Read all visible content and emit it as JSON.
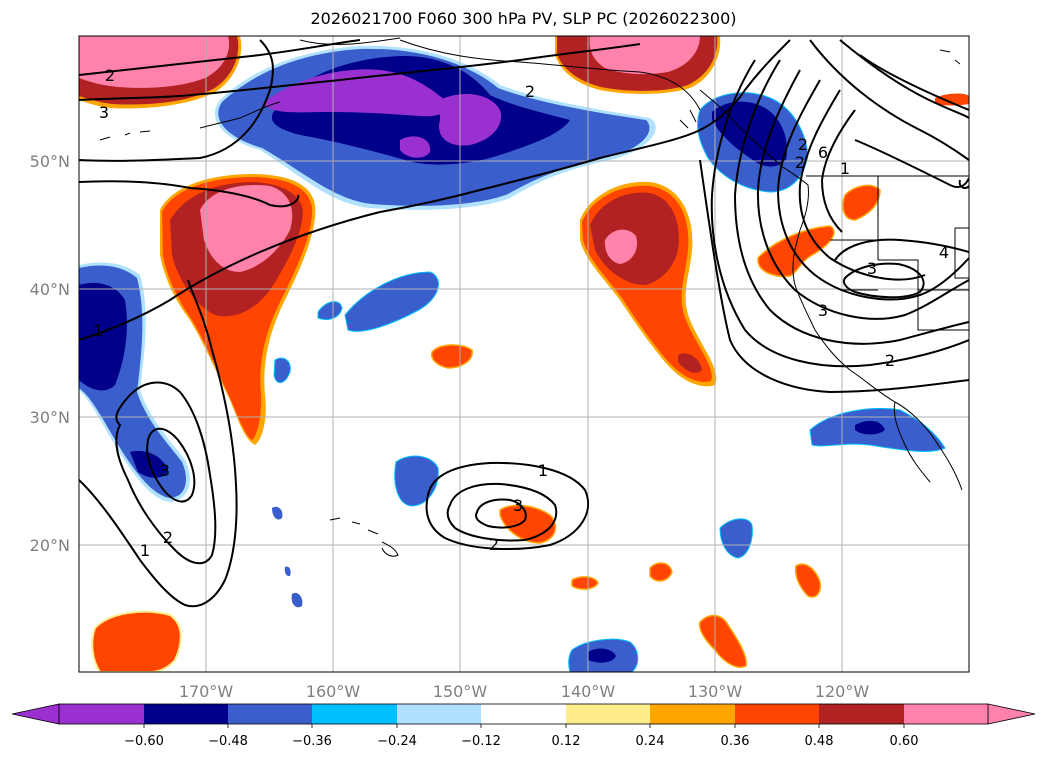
{
  "title": "2026021700 F060 300 hPa PV, SLP PC (2026022300)",
  "lat_labels": [
    "50°N",
    "40°N",
    "30°N",
    "20°N"
  ],
  "lon_labels": [
    "170°W",
    "160°W",
    "150°W",
    "140°W",
    "130°W",
    "120°W"
  ],
  "colorbar": {
    "colors": [
      "#9b30d0",
      "#00008b",
      "#3a5fcd",
      "#00bfff",
      "#b0e2ff",
      "#ffffff",
      "#ffec8b",
      "#ffa500",
      "#ff4500",
      "#b22222",
      "#ff82ab"
    ],
    "ticks": [
      "−0.60",
      "−0.48",
      "−0.36",
      "−0.24",
      "−0.12",
      "0.12",
      "0.24",
      "0.36",
      "0.48",
      "0.60"
    ]
  },
  "contour_labels": [
    "2",
    "3",
    "2",
    "1",
    "2",
    "1",
    "3",
    "2",
    "1",
    "3",
    "2",
    "1",
    "3",
    "2",
    "6",
    "4",
    "3",
    "2"
  ]
}
